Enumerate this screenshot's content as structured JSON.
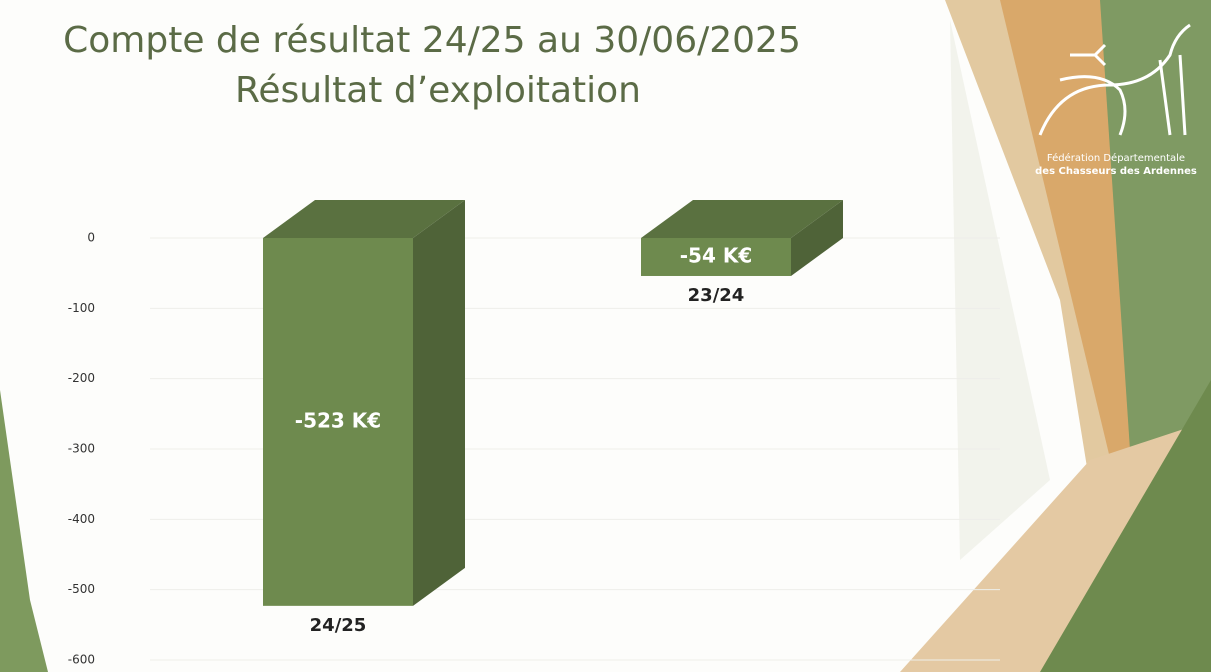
{
  "chart_data": {
    "type": "bar3d",
    "title": "Compte de résultat 24/25 au 30/06/2025",
    "subtitle": "Résultat d’exploitation",
    "categories": [
      "24/25",
      "23/24"
    ],
    "values": [
      -523,
      -54
    ],
    "value_labels": [
      "-523 K€",
      "-54 K€"
    ],
    "color": "#6e8a4e",
    "ylim": [
      -600,
      0
    ],
    "yticks": [
      0,
      -100,
      -200,
      -300,
      -400,
      -500,
      -600
    ],
    "grid": true
  },
  "logo_text": [
    "Fédération Départementale",
    "des Chasseurs des Ardennes"
  ]
}
